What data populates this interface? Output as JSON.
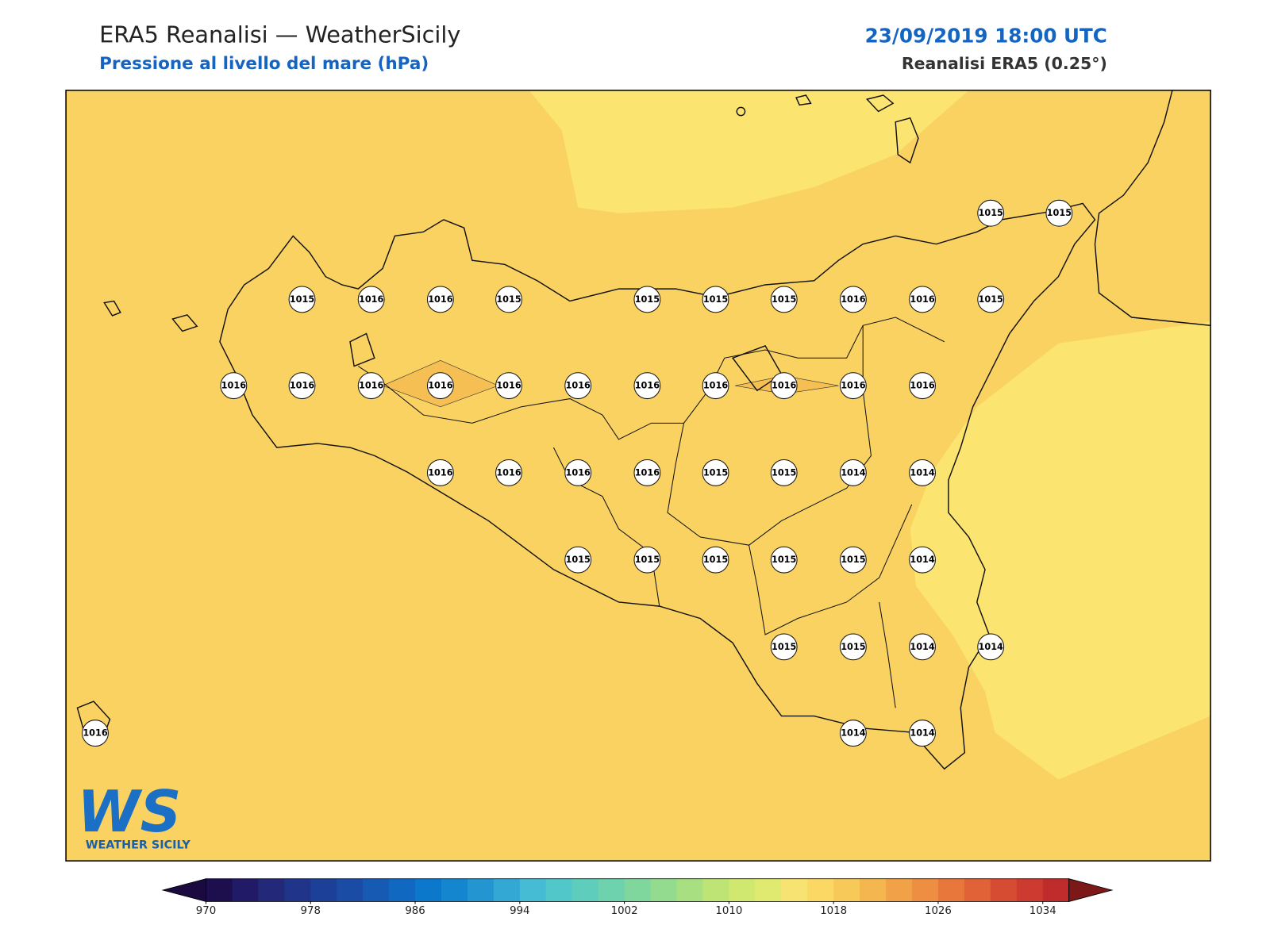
{
  "header": {
    "title": "ERA5 Reanalisi — WeatherSicily",
    "subtitle": "Pressione al livello del mare (hPa)",
    "date": "23/09/2019 18:00 UTC",
    "source": "Reanalisi ERA5 (0.25°)"
  },
  "map": {
    "stations": [
      1015,
      1015,
      1015,
      1016,
      1016,
      1015,
      1015,
      1015,
      1015,
      1016,
      1016,
      1015,
      1016,
      1016,
      1016,
      1016,
      1016,
      1016,
      1016,
      1016,
      1016,
      1016,
      1016,
      1016,
      1016,
      1016,
      1016,
      1015,
      1015,
      1014,
      1014,
      1015,
      1015,
      1015,
      1015,
      1015,
      1014,
      1015,
      1015,
      1014,
      1014,
      1014,
      1014,
      1016
    ]
  },
  "colorbar": {
    "lim": [
      970,
      1036
    ],
    "ticks": [
      970,
      978,
      986,
      994,
      1002,
      1010,
      1018,
      1026,
      1034
    ],
    "colors": [
      "#1d0e4e",
      "#211a66",
      "#232879",
      "#20348a",
      "#1c3f97",
      "#1a4ca6",
      "#165ab4",
      "#1168c0",
      "#0c78cb",
      "#1486cf",
      "#2396d2",
      "#34a8d4",
      "#45bcd3",
      "#52c7c9",
      "#5fcdbb",
      "#6dd2ad",
      "#80d79e",
      "#93dc8f",
      "#a8e081",
      "#bde475",
      "#d0e86f",
      "#e1ea70",
      "#f6e372",
      "#fbd864",
      "#f7c958",
      "#f4b64f",
      "#f1a248",
      "#ed8e42",
      "#e8773b",
      "#e06236",
      "#d64c32",
      "#cc3a30",
      "#c02b2c"
    ],
    "under": "#1a0a3f",
    "over": "#7d1818"
  },
  "logo": {
    "mark": "WS",
    "text": "WEATHER SICILY"
  }
}
